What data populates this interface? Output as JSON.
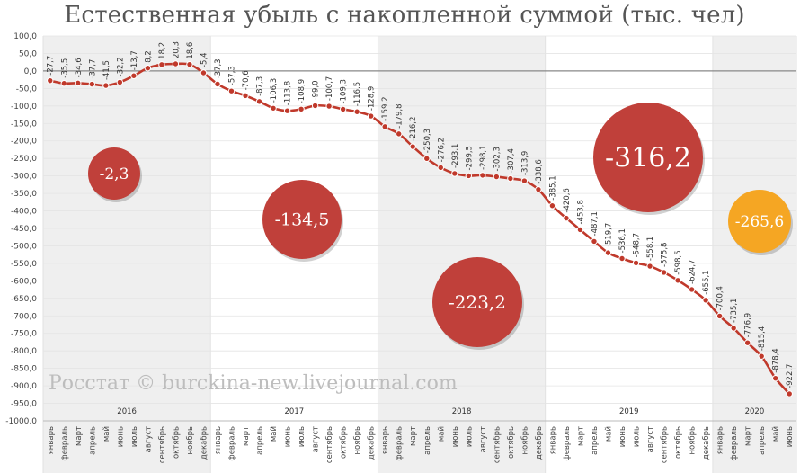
{
  "title": "Естественная убыль с накопленной суммой (тыс. чел)",
  "watermark": "Росстат © burckina-new.livejournal.com",
  "colors": {
    "line": "#c0392b",
    "bubble": "#c0403a",
    "bubble_highlight": "#f5a623",
    "band": "#efefef",
    "zero_line": "#888888",
    "text": "#555555"
  },
  "chart_data": {
    "type": "line",
    "title": "Естественная убыль с накопленной суммой (тыс. чел)",
    "ylim": [
      -1000,
      100
    ],
    "yticks": [
      "100,0",
      "50,0",
      "0,0",
      "-50,0",
      "-100,0",
      "-150,0",
      "-200,0",
      "-250,0",
      "-300,0",
      "-350,0",
      "-400,0",
      "-450,0",
      "-500,0",
      "-550,0",
      "-600,0",
      "-650,0",
      "-700,0",
      "-750,0",
      "-800,0",
      "-850,0",
      "-900,0",
      "-950,0",
      "-1000,0"
    ],
    "ytick_values": [
      100,
      50,
      0,
      -50,
      -100,
      -150,
      -200,
      -250,
      -300,
      -350,
      -400,
      -450,
      -500,
      -550,
      -600,
      -650,
      -700,
      -750,
      -800,
      -850,
      -900,
      -950,
      -1000
    ],
    "grid": true,
    "months": [
      "январь",
      "февраль",
      "март",
      "апрель",
      "май",
      "июнь",
      "июль",
      "август",
      "сентябрь",
      "октябрь",
      "ноябрь",
      "декабрь",
      "январь",
      "февраль",
      "март",
      "апрель",
      "май",
      "июнь",
      "июль",
      "август",
      "сентябрь",
      "октябрь",
      "ноябрь",
      "декабрь",
      "январь",
      "февраль",
      "март",
      "апрель",
      "май",
      "июнь",
      "июль",
      "август",
      "сентябрь",
      "октябрь",
      "ноябрь",
      "декабрь",
      "январь",
      "февраль",
      "март",
      "апрель",
      "май",
      "июнь",
      "июль",
      "август",
      "сентябрь",
      "октябрь",
      "ноябрь",
      "декабрь",
      "январь",
      "февраль",
      "март",
      "апрель",
      "май",
      "июнь"
    ],
    "values": [
      -27.7,
      -35.5,
      -34.6,
      -37.7,
      -41.5,
      -32.2,
      -13.7,
      8.2,
      18.2,
      20.3,
      18.6,
      -5.4,
      -37.3,
      -57.3,
      -70.6,
      -87.3,
      -106.3,
      -113.8,
      -108.9,
      -99.0,
      -100.7,
      -109.3,
      -116.5,
      -128.9,
      -159.2,
      -179.8,
      -216.2,
      -250.3,
      -276.2,
      -293.1,
      -299.5,
      -298.1,
      -302.3,
      -307.4,
      -313.9,
      -338.6,
      -385.1,
      -420.6,
      -453.8,
      -487.1,
      -519.7,
      -536.1,
      -548.7,
      -558.1,
      -575.8,
      -598.5,
      -624.7,
      -655.1,
      -700.4,
      -735.1,
      -776.9,
      -815.4,
      -878.4,
      -922.7
    ],
    "labels": [
      "-27,7",
      "-35,5",
      "-34,6",
      "-37,7",
      "-41,5",
      "-32,2",
      "-13,7",
      "8,2",
      "18,2",
      "20,3",
      "18,6",
      "-5,4",
      "-37,3",
      "-57,3",
      "-70,6",
      "-87,3",
      "-106,3",
      "-113,8",
      "-108,9",
      "-99,0",
      "-100,7",
      "-109,3",
      "-116,5",
      "-128,9",
      "-159,2",
      "-179,8",
      "-216,2",
      "-250,3",
      "-276,2",
      "-293,1",
      "-299,5",
      "-298,1",
      "-302,3",
      "-307,4",
      "-313,9",
      "-338,6",
      "-385,1",
      "-420,6",
      "-453,8",
      "-487,1",
      "-519,7",
      "-536,1",
      "-548,7",
      "-558,1",
      "-575,8",
      "-598,5",
      "-624,7",
      "-655,1",
      "-700,4",
      "-735,1",
      "-776,9",
      "-815,4",
      "-878,4",
      "-922,7"
    ],
    "years": [
      {
        "label": "2016",
        "start": 0,
        "count": 12
      },
      {
        "label": "2017",
        "start": 12,
        "count": 12
      },
      {
        "label": "2018",
        "start": 24,
        "count": 12
      },
      {
        "label": "2019",
        "start": 36,
        "count": 12
      },
      {
        "label": "2020",
        "start": 48,
        "count": 6
      }
    ],
    "annual_totals": [
      {
        "year": "2016",
        "label": "-2,3",
        "value": -2.3,
        "highlight": false
      },
      {
        "year": "2017",
        "label": "-134,5",
        "value": -134.5,
        "highlight": false
      },
      {
        "year": "2018",
        "label": "-223,2",
        "value": -223.2,
        "highlight": false
      },
      {
        "year": "2019",
        "label": "-316,2",
        "value": -316.2,
        "highlight": false
      },
      {
        "year": "2020",
        "label": "-265,6",
        "value": -265.6,
        "highlight": true
      }
    ]
  }
}
